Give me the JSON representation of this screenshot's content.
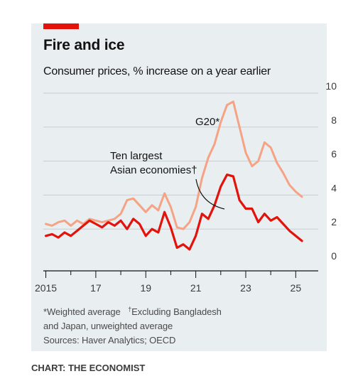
{
  "chart_data": {
    "type": "line",
    "title": "Fire and ice",
    "subtitle": "Consumer prices, % increase on a year earlier",
    "xlabel": "",
    "ylabel": "",
    "x_tick_labels": [
      "2015",
      "17",
      "19",
      "21",
      "23",
      "25"
    ],
    "x_tick_positions": [
      2015,
      2017,
      2019,
      2021,
      2023,
      2025
    ],
    "xlim": [
      2014.9,
      2025.9
    ],
    "ylim": [
      0,
      10
    ],
    "y_ticks": [
      0,
      2,
      4,
      6,
      8,
      10
    ],
    "grid": true,
    "series": [
      {
        "name": "G20*",
        "color": "#f6a385",
        "x": [
          2015.0,
          2015.25,
          2015.5,
          2015.75,
          2016.0,
          2016.25,
          2016.5,
          2016.75,
          2017.0,
          2017.25,
          2017.5,
          2017.75,
          2018.0,
          2018.25,
          2018.5,
          2018.75,
          2019.0,
          2019.25,
          2019.5,
          2019.75,
          2020.0,
          2020.25,
          2020.5,
          2020.75,
          2021.0,
          2021.25,
          2021.5,
          2021.75,
          2022.0,
          2022.25,
          2022.5,
          2022.75,
          2023.0,
          2023.25,
          2023.5,
          2023.75,
          2024.0,
          2024.25,
          2024.5,
          2024.75,
          2025.0,
          2025.25
        ],
        "y": [
          2.3,
          2.2,
          2.4,
          2.5,
          2.2,
          2.5,
          2.3,
          2.6,
          2.5,
          2.4,
          2.5,
          2.6,
          2.9,
          3.7,
          3.8,
          3.4,
          3.0,
          3.4,
          3.1,
          4.1,
          3.3,
          2.1,
          2.0,
          2.4,
          3.3,
          5.0,
          6.2,
          7.0,
          8.3,
          9.3,
          9.5,
          8.0,
          6.5,
          5.7,
          6.0,
          7.1,
          6.8,
          5.9,
          5.3,
          4.6,
          4.2,
          3.9
        ]
      },
      {
        "name": "Ten largest Asian economies†",
        "color": "#e3120b",
        "x": [
          2015.0,
          2015.25,
          2015.5,
          2015.75,
          2016.0,
          2016.25,
          2016.5,
          2016.75,
          2017.0,
          2017.25,
          2017.5,
          2017.75,
          2018.0,
          2018.25,
          2018.5,
          2018.75,
          2019.0,
          2019.25,
          2019.5,
          2019.75,
          2020.0,
          2020.25,
          2020.5,
          2020.75,
          2021.0,
          2021.25,
          2021.5,
          2021.75,
          2022.0,
          2022.25,
          2022.5,
          2022.75,
          2023.0,
          2023.25,
          2023.5,
          2023.75,
          2024.0,
          2024.25,
          2024.5,
          2024.75,
          2025.0,
          2025.25
        ],
        "y": [
          1.6,
          1.7,
          1.5,
          1.8,
          1.6,
          1.9,
          2.2,
          2.5,
          2.3,
          2.1,
          2.4,
          2.2,
          2.5,
          2.0,
          2.6,
          2.3,
          1.6,
          2.0,
          1.8,
          3.0,
          2.1,
          0.9,
          1.1,
          0.8,
          1.6,
          2.9,
          2.6,
          3.4,
          4.5,
          5.2,
          5.1,
          3.7,
          3.2,
          3.2,
          2.4,
          2.9,
          2.5,
          2.7,
          2.3,
          1.9,
          1.6,
          1.3
        ]
      }
    ],
    "annotations": [
      {
        "text": "G20*",
        "series": "G20*"
      },
      {
        "text_lines": [
          "Ten largest",
          "Asian economies†"
        ],
        "series": "Ten largest Asian economies†"
      }
    ]
  },
  "footnotes": {
    "line1_a": "*Weighted average",
    "line1_dagger": "†",
    "line1_b": "Excluding Bangladesh",
    "line2": "and Japan, unweighted average",
    "line3": "Sources: Haver Analytics; OECD"
  },
  "credit": "CHART: THE ECONOMIST",
  "colors": {
    "accent": "#e3120b",
    "panel_background": "#e9eef0",
    "grid": "#c7cdd1"
  }
}
